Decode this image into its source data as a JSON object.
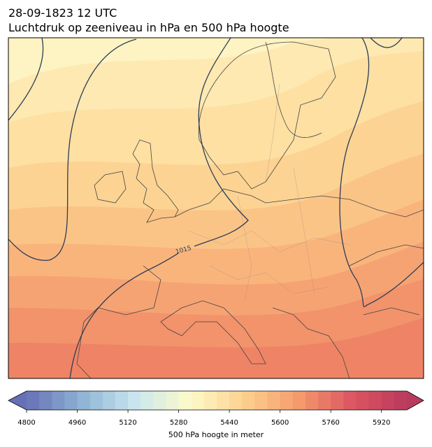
{
  "header": {
    "title_line1": "28-09-1823 12 UTC",
    "title_line2": "Luchtdruk op zeeniveau in hPa en 500 hPa hoogte"
  },
  "map": {
    "isobar_label": "1015"
  },
  "colorbar": {
    "label": "500 hPa hoogte in meter",
    "lim": [
      4800,
      6000
    ],
    "ticks": [
      4800,
      4960,
      5120,
      5280,
      5440,
      5600,
      5760,
      5920
    ]
  }
}
